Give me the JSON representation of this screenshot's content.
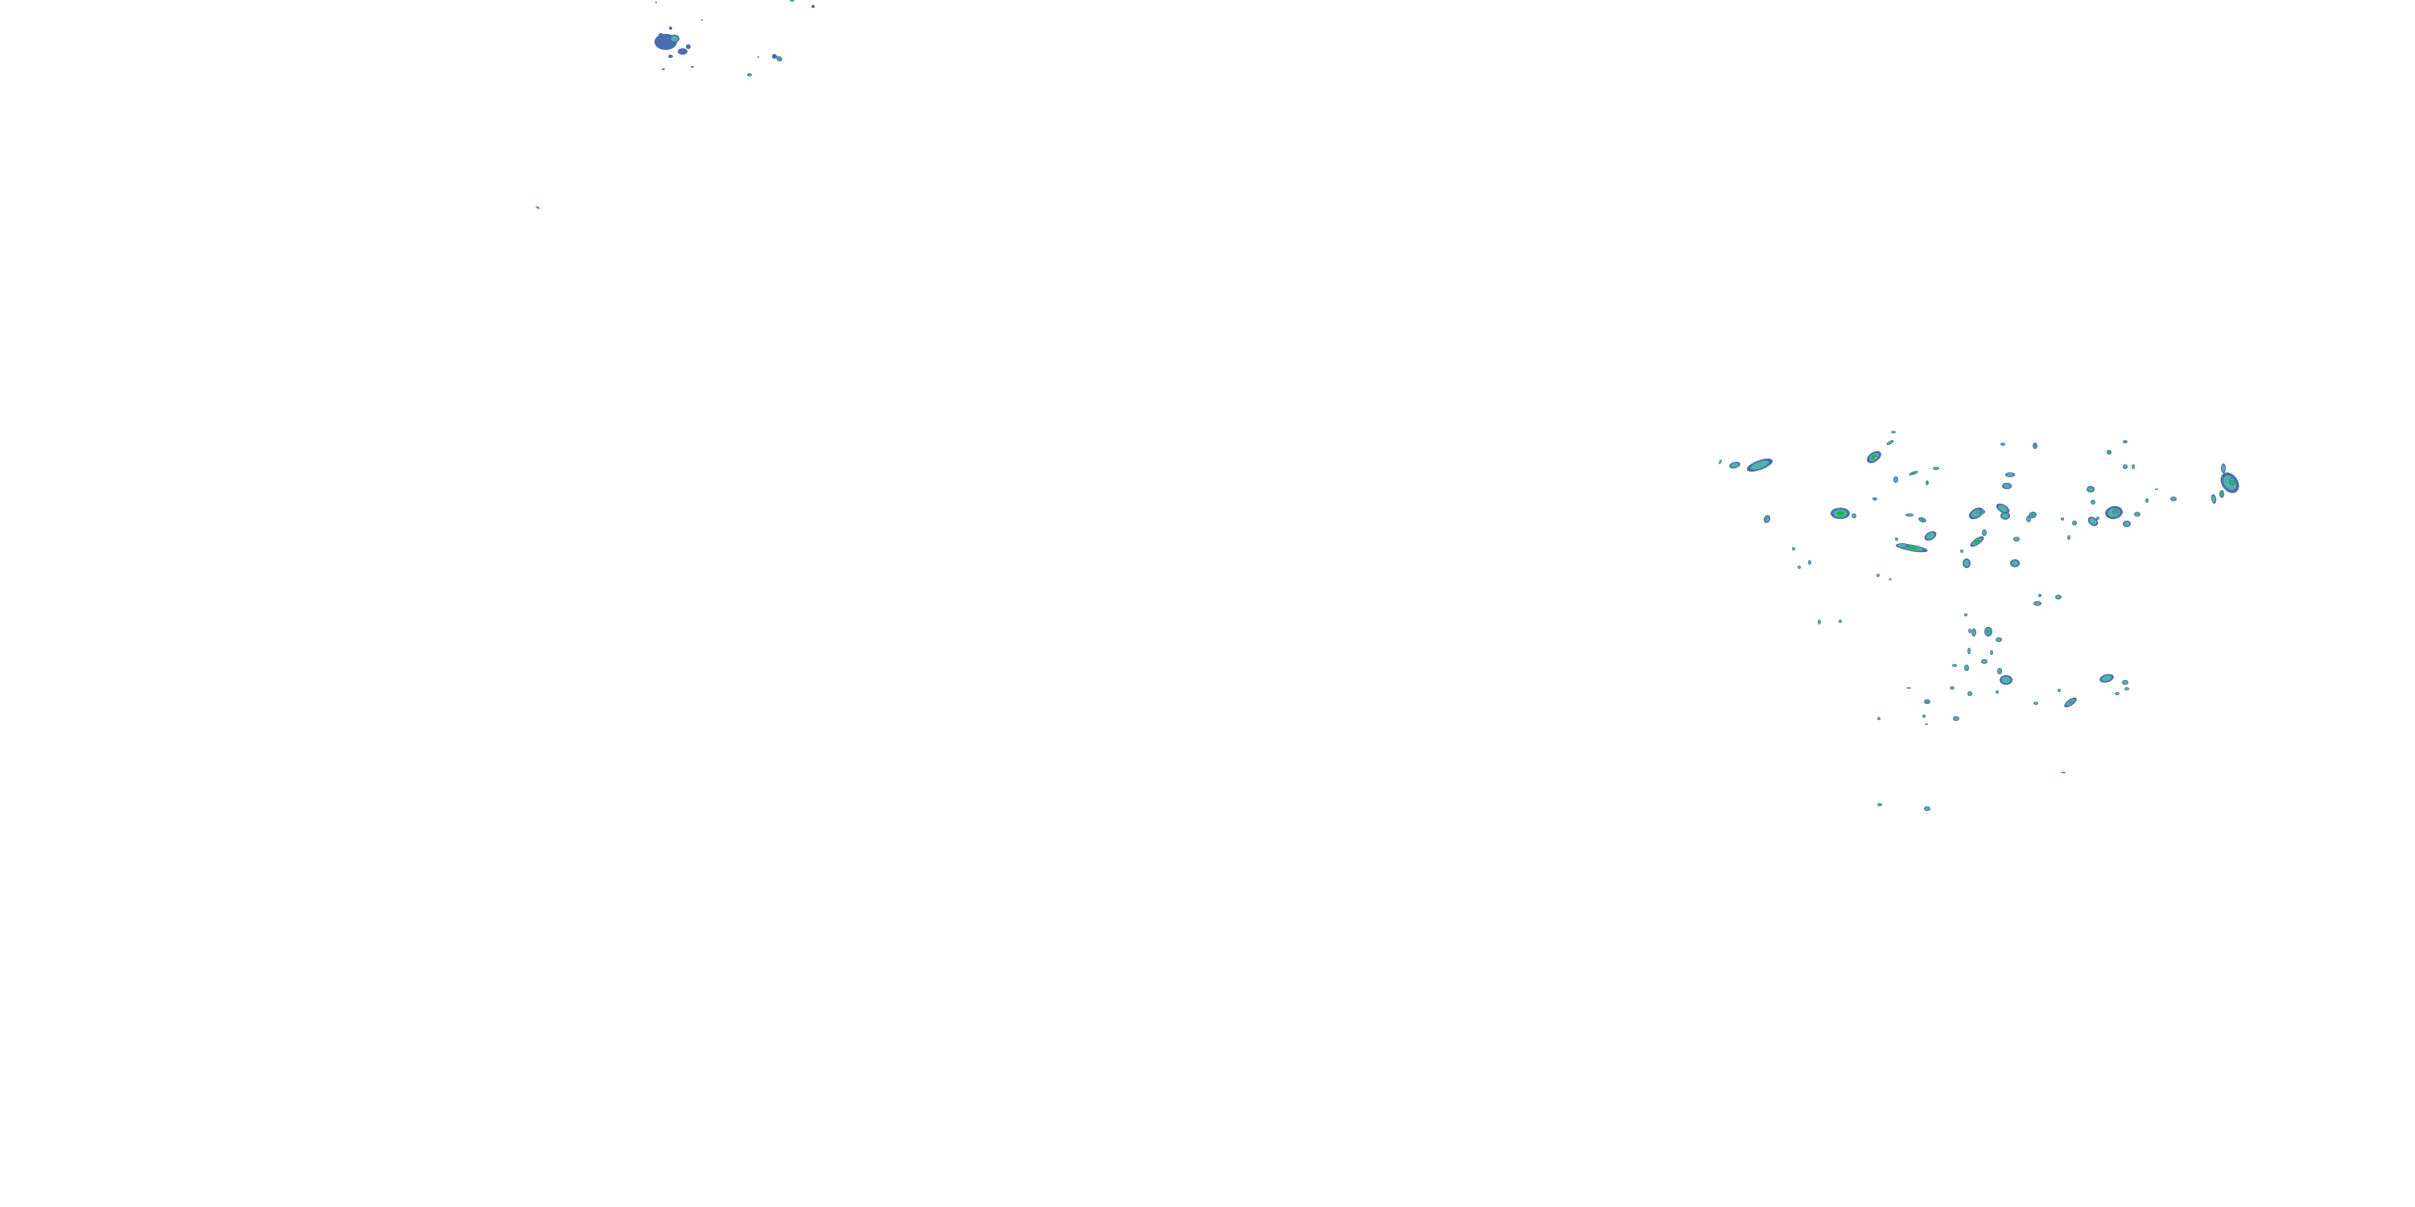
{
  "layer": "precipitation-radar-overlay",
  "background_color": "#ffffff",
  "palette": {
    "light": "#4a6cb0",
    "moderate": "#4fb3a6",
    "heavy": "#18b83a",
    "intense": "#e6d21e"
  }
}
